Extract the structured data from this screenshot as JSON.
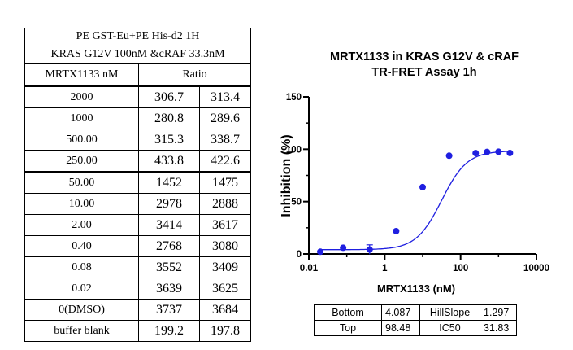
{
  "table": {
    "title_line1": "PE GST-Eu+PE His-d2 1H",
    "title_line2": "KRAS G12V 100nM &cRAF 33.3nM",
    "col1_header": "MRTX1133 nM",
    "col2_header": "Ratio",
    "rows": [
      {
        "conc": "2000",
        "r1": "306.7",
        "r2": "313.4"
      },
      {
        "conc": "1000",
        "r1": "280.8",
        "r2": "289.6"
      },
      {
        "conc": "500.00",
        "r1": "315.3",
        "r2": "338.7"
      },
      {
        "conc": "250.00",
        "r1": "433.8",
        "r2": "422.6"
      },
      {
        "conc": "50.00",
        "r1": "1452",
        "r2": "1475"
      },
      {
        "conc": "10.00",
        "r1": "2978",
        "r2": "2888"
      },
      {
        "conc": "2.00",
        "r1": "3414",
        "r2": "3617"
      },
      {
        "conc": "0.40",
        "r1": "2768",
        "r2": "3080"
      },
      {
        "conc": "0.08",
        "r1": "3552",
        "r2": "3409"
      },
      {
        "conc": "0.02",
        "r1": "3639",
        "r2": "3625"
      },
      {
        "conc": "0(DMSO)",
        "r1": "3737",
        "r2": "3684"
      },
      {
        "conc": "buffer blank",
        "r1": "199.2",
        "r2": "197.8"
      }
    ]
  },
  "chart_data": {
    "type": "scatter",
    "title": "MRTX1133 in KRAS G12V & cRAF",
    "subtitle": "TR-FRET Assay 1h",
    "xlabel": "MRTX1133 (nM)",
    "ylabel": "Inhibition (%)",
    "xscale": "log",
    "xlim": [
      0.01,
      10000
    ],
    "ylim": [
      0,
      150
    ],
    "x_ticks": [
      "0.01",
      "1",
      "100",
      "10000"
    ],
    "y_ticks": [
      "0",
      "50",
      "100",
      "150"
    ],
    "marker_color": "#1f1fe0",
    "series": [
      {
        "name": "MRTX1133",
        "x": [
          0.02,
          0.08,
          0.4,
          2,
          10,
          50,
          250,
          500,
          1000,
          2000
        ],
        "y": [
          2.1,
          5.9,
          4.2,
          21.8,
          63.8,
          93.8,
          96.3,
          97.4,
          97.6,
          96.4
        ],
        "error": [
          0,
          0,
          4.5,
          0,
          0,
          0,
          0,
          0,
          0,
          0
        ]
      }
    ],
    "fit": {
      "model": "4PL",
      "bottom": 4.087,
      "top": 98.48,
      "hillslope": 1.297,
      "ic50": 31.83,
      "x_range": [
        0.02,
        2000
      ]
    }
  },
  "fit_table": {
    "bottom_label": "Bottom",
    "bottom_value": "4.087",
    "hillslope_label": "HillSlope",
    "hillslope_value": "1.297",
    "top_label": "Top",
    "top_value": "98.48",
    "ic50_label": "IC50",
    "ic50_value": "31.83"
  }
}
